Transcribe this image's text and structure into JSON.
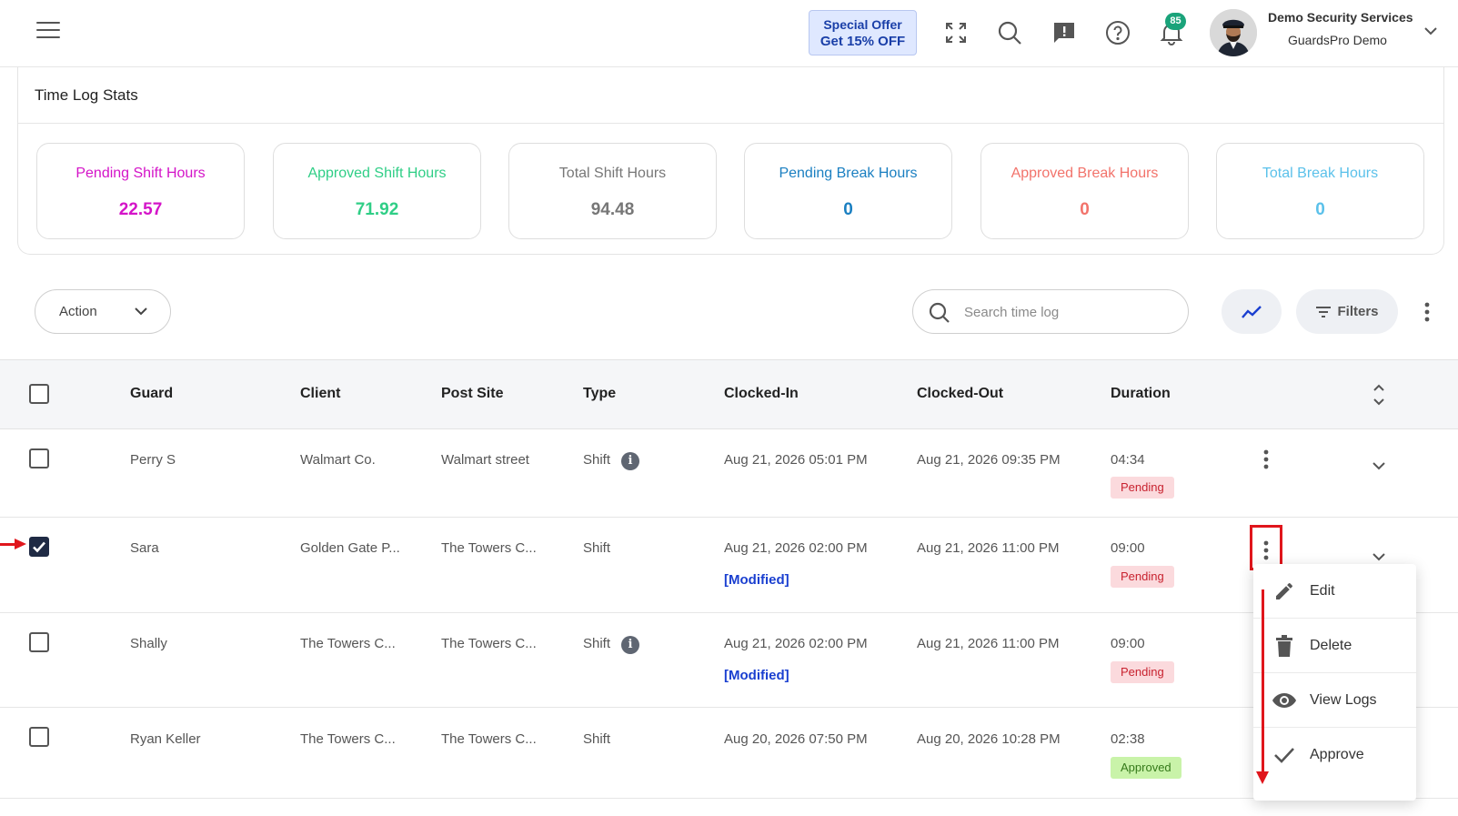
{
  "header": {
    "offer_line1": "Special Offer",
    "offer_line2": "Get 15% OFF",
    "notification_count": "85",
    "company_name": "Demo Security Services",
    "user_name": "GuardsPro Demo",
    "icons": [
      "menu-icon",
      "fullscreen-icon",
      "search-icon",
      "feedback-icon",
      "help-icon",
      "bell-icon",
      "chevron-down-icon"
    ]
  },
  "stats": {
    "title": "Time Log Stats",
    "cards": [
      {
        "label": "Pending Shift Hours",
        "value": "22.57",
        "label_color": "#d414c8",
        "value_color": "#d414c8"
      },
      {
        "label": "Approved Shift Hours",
        "value": "71.92",
        "label_color": "#2fce86",
        "value_color": "#2fce86"
      },
      {
        "label": "Total Shift Hours",
        "value": "94.48",
        "label_color": "#777777",
        "value_color": "#777777"
      },
      {
        "label": "Pending Break Hours",
        "value": "0",
        "label_color": "#1a7fc1",
        "value_color": "#1a7fc1"
      },
      {
        "label": "Approved Break Hours",
        "value": "0",
        "label_color": "#f2736b",
        "value_color": "#f2736b"
      },
      {
        "label": "Total Break Hours",
        "value": "0",
        "label_color": "#5bc1ea",
        "value_color": "#5bc1ea"
      }
    ]
  },
  "toolbar": {
    "action_label": "Action",
    "search_placeholder": "Search time log",
    "filters_label": "Filters"
  },
  "table": {
    "headers": [
      "Guard",
      "Client",
      "Post Site",
      "Type",
      "Clocked-In",
      "Clocked-Out",
      "Duration"
    ],
    "rows": [
      {
        "guard": "Perry S",
        "client": "Walmart Co.",
        "post_site": "Walmart street",
        "type": "Shift",
        "type_info": true,
        "clocked_in": "Aug 21, 2026 05:01 PM",
        "modified": "",
        "clocked_out": "Aug 21, 2026 09:35 PM",
        "duration": "04:34",
        "status": "Pending",
        "checked": false
      },
      {
        "guard": "Sara",
        "client": "Golden Gate P...",
        "post_site": "The Towers C...",
        "type": "Shift",
        "type_info": false,
        "clocked_in": "Aug 21, 2026 02:00 PM",
        "modified": "[Modified]",
        "clocked_out": "Aug 21, 2026 11:00 PM",
        "duration": "09:00",
        "status": "Pending",
        "checked": true
      },
      {
        "guard": "Shally",
        "client": "The Towers C...",
        "post_site": "The Towers C...",
        "type": "Shift",
        "type_info": true,
        "clocked_in": "Aug 21, 2026 02:00 PM",
        "modified": "[Modified]",
        "clocked_out": "Aug 21, 2026 11:00 PM",
        "duration": "09:00",
        "status": "Pending",
        "checked": false
      },
      {
        "guard": "Ryan Keller",
        "client": "The Towers C...",
        "post_site": "The Towers C...",
        "type": "Shift",
        "type_info": false,
        "clocked_in": "Aug 20, 2026 07:50 PM",
        "modified": "",
        "clocked_out": "Aug 20, 2026 10:28 PM",
        "duration": "02:38",
        "status": "Approved",
        "checked": false
      }
    ]
  },
  "row_menu": {
    "items": [
      {
        "label": "Edit",
        "icon": "pencil-icon"
      },
      {
        "label": "Delete",
        "icon": "trash-icon"
      },
      {
        "label": "View Logs",
        "icon": "eye-icon"
      },
      {
        "label": "Approve",
        "icon": "check-icon"
      }
    ]
  },
  "colors": {
    "accent": "#1a3fd0",
    "annotation_red": "#e0161c",
    "pending_bg": "#fbdadd",
    "approved_bg": "#c9f3a9"
  }
}
